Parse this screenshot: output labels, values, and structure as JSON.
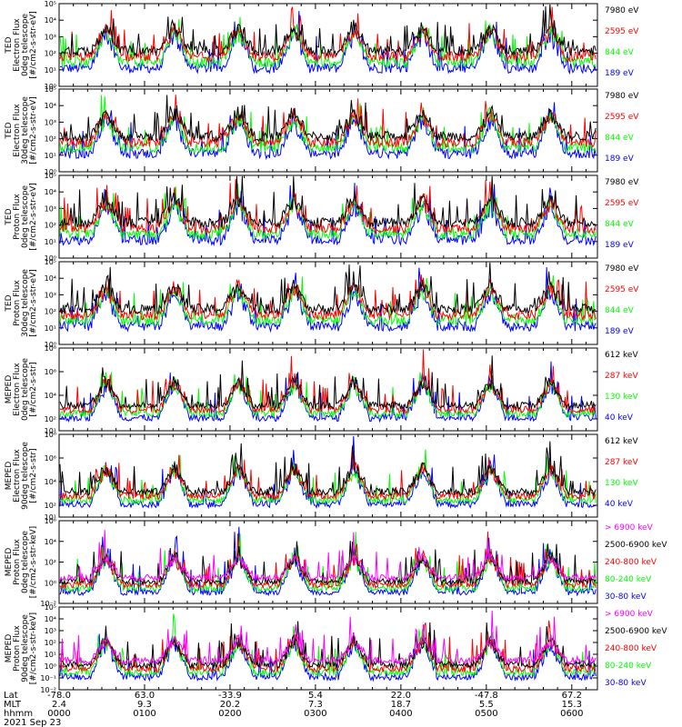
{
  "colors": {
    "black": "#000000",
    "red": "#ff0000",
    "green": "#00ff00",
    "blue": "#0000ff",
    "magenta": "#ff00ff"
  },
  "chart_data": [
    {
      "type": "line",
      "ylabel": [
        "TED",
        "Electron Flux",
        "0deg telescope",
        "[#/cm2-s-str-eV]"
      ],
      "ylim_exp": [
        0,
        5
      ],
      "ticks": [
        "10⁰",
        "10¹",
        "10²",
        "10³",
        "10⁴",
        "10⁵"
      ],
      "series": [
        {
          "name": "7980 eV",
          "color": "#000000"
        },
        {
          "name": "2595 eV",
          "color": "#ff0000"
        },
        {
          "name": "844 eV",
          "color": "#00ff00"
        },
        {
          "name": "189 eV",
          "color": "#0000ff"
        }
      ]
    },
    {
      "type": "line",
      "ylabel": [
        "TED",
        "Electron Flux",
        "30deg telescope",
        "[#/cm2-s-str-eV]"
      ],
      "ylim_exp": [
        0,
        5
      ],
      "ticks": [
        "10⁰",
        "10¹",
        "10²",
        "10³",
        "10⁴",
        "10⁵"
      ],
      "series": [
        {
          "name": "7980 eV",
          "color": "#000000"
        },
        {
          "name": "2595 eV",
          "color": "#ff0000"
        },
        {
          "name": "844 eV",
          "color": "#00ff00"
        },
        {
          "name": "189 eV",
          "color": "#0000ff"
        }
      ]
    },
    {
      "type": "line",
      "ylabel": [
        "TED",
        "Proton Flux",
        "0deg telescope",
        "[#/cm2-s-str-eV]"
      ],
      "ylim_exp": [
        0,
        5
      ],
      "ticks": [
        "10⁰",
        "10¹",
        "10²",
        "10³",
        "10⁴",
        "10⁵"
      ],
      "series": [
        {
          "name": "7980 eV",
          "color": "#000000"
        },
        {
          "name": "2595 eV",
          "color": "#ff0000"
        },
        {
          "name": "844 eV",
          "color": "#00ff00"
        },
        {
          "name": "189 eV",
          "color": "#0000ff"
        }
      ]
    },
    {
      "type": "line",
      "ylabel": [
        "TED",
        "Proton Flux",
        "30deg telescope",
        "[#/cm2-s-str-eV]"
      ],
      "ylim_exp": [
        0,
        5
      ],
      "ticks": [
        "10⁰",
        "10¹",
        "10²",
        "10³",
        "10⁴",
        "10⁵"
      ],
      "series": [
        {
          "name": "7980 eV",
          "color": "#000000"
        },
        {
          "name": "2595 eV",
          "color": "#ff0000"
        },
        {
          "name": "844 eV",
          "color": "#00ff00"
        },
        {
          "name": "189 eV",
          "color": "#0000ff"
        }
      ]
    },
    {
      "type": "line",
      "ylabel": [
        "MEPED",
        "Electron Flux",
        "0deg telescope",
        "[#/cm2-s-str]"
      ],
      "ylim_exp": [
        1,
        8
      ],
      "ticks": [
        "10¹",
        "10²",
        "10⁴",
        "10⁶",
        "10⁸"
      ],
      "tick_exps": [
        1,
        2,
        4,
        6,
        8
      ],
      "series": [
        {
          "name": "612 keV",
          "color": "#000000"
        },
        {
          "name": "287 keV",
          "color": "#ff0000"
        },
        {
          "name": "130 keV",
          "color": "#00ff00"
        },
        {
          "name": "40 keV",
          "color": "#0000ff"
        }
      ]
    },
    {
      "type": "line",
      "ylabel": [
        "MEPED",
        "Electron Flux",
        "90deg telescope",
        "[#/cm2-s-str]"
      ],
      "ylim_exp": [
        1,
        8
      ],
      "ticks": [
        "10¹",
        "10²",
        "10⁴",
        "10⁶",
        "10⁸"
      ],
      "tick_exps": [
        1,
        2,
        4,
        6,
        8
      ],
      "series": [
        {
          "name": "612 keV",
          "color": "#000000"
        },
        {
          "name": "287 keV",
          "color": "#ff0000"
        },
        {
          "name": "130 keV",
          "color": "#00ff00"
        },
        {
          "name": "40 keV",
          "color": "#0000ff"
        }
      ]
    },
    {
      "type": "line",
      "ylabel": [
        "MEPED",
        "Proton Flux",
        "0deg telescope",
        "[#/cm2-s-str-keV]"
      ],
      "ylim_exp": [
        -2,
        6
      ],
      "ticks": [
        "10⁻²",
        "10⁰",
        "10²",
        "10⁴",
        "10⁶"
      ],
      "tick_exps": [
        -2,
        0,
        2,
        4,
        6
      ],
      "series": [
        {
          "name": "> 6900 keV",
          "color": "#ff00ff"
        },
        {
          "name": "2500-6900 keV",
          "color": "#000000"
        },
        {
          "name": "240-800 keV",
          "color": "#ff0000"
        },
        {
          "name": "80-240 keV",
          "color": "#00ff00"
        },
        {
          "name": "30-80 keV",
          "color": "#0000ff"
        }
      ]
    },
    {
      "type": "line",
      "ylabel": [
        "MEPED",
        "Proton Flux",
        "90deg telescope",
        "[#/cm2-s-str-keV]"
      ],
      "ylim_exp": [
        -2,
        5
      ],
      "ticks": [
        "10⁻²",
        "10⁻¹",
        "10⁰",
        "10¹",
        "10²",
        "10³",
        "10⁴",
        "10⁵"
      ],
      "tick_exps": [
        -2,
        -1,
        0,
        1,
        2,
        3,
        4,
        5
      ],
      "series": [
        {
          "name": "> 6900 keV",
          "color": "#ff00ff"
        },
        {
          "name": "2500-6900 keV",
          "color": "#000000"
        },
        {
          "name": "240-800 keV",
          "color": "#ff0000"
        },
        {
          "name": "80-240 keV",
          "color": "#00ff00"
        },
        {
          "name": "30-80 keV",
          "color": "#0000ff"
        }
      ]
    }
  ],
  "x_axis": {
    "row_labels": [
      "Lat",
      "MLT",
      "hhmm",
      "2021 Sep 23"
    ],
    "lat": [
      "-78.0",
      "63.0",
      "-33.9",
      "5.4",
      "22.0",
      "-47.8",
      "67.2"
    ],
    "mlt": [
      "2.4",
      "9.3",
      "20.2",
      "7.3",
      "18.7",
      "5.5",
      "15.3"
    ],
    "hhmm": [
      "0000",
      "0100",
      "0200",
      "0300",
      "0400",
      "0500",
      "0600"
    ]
  }
}
